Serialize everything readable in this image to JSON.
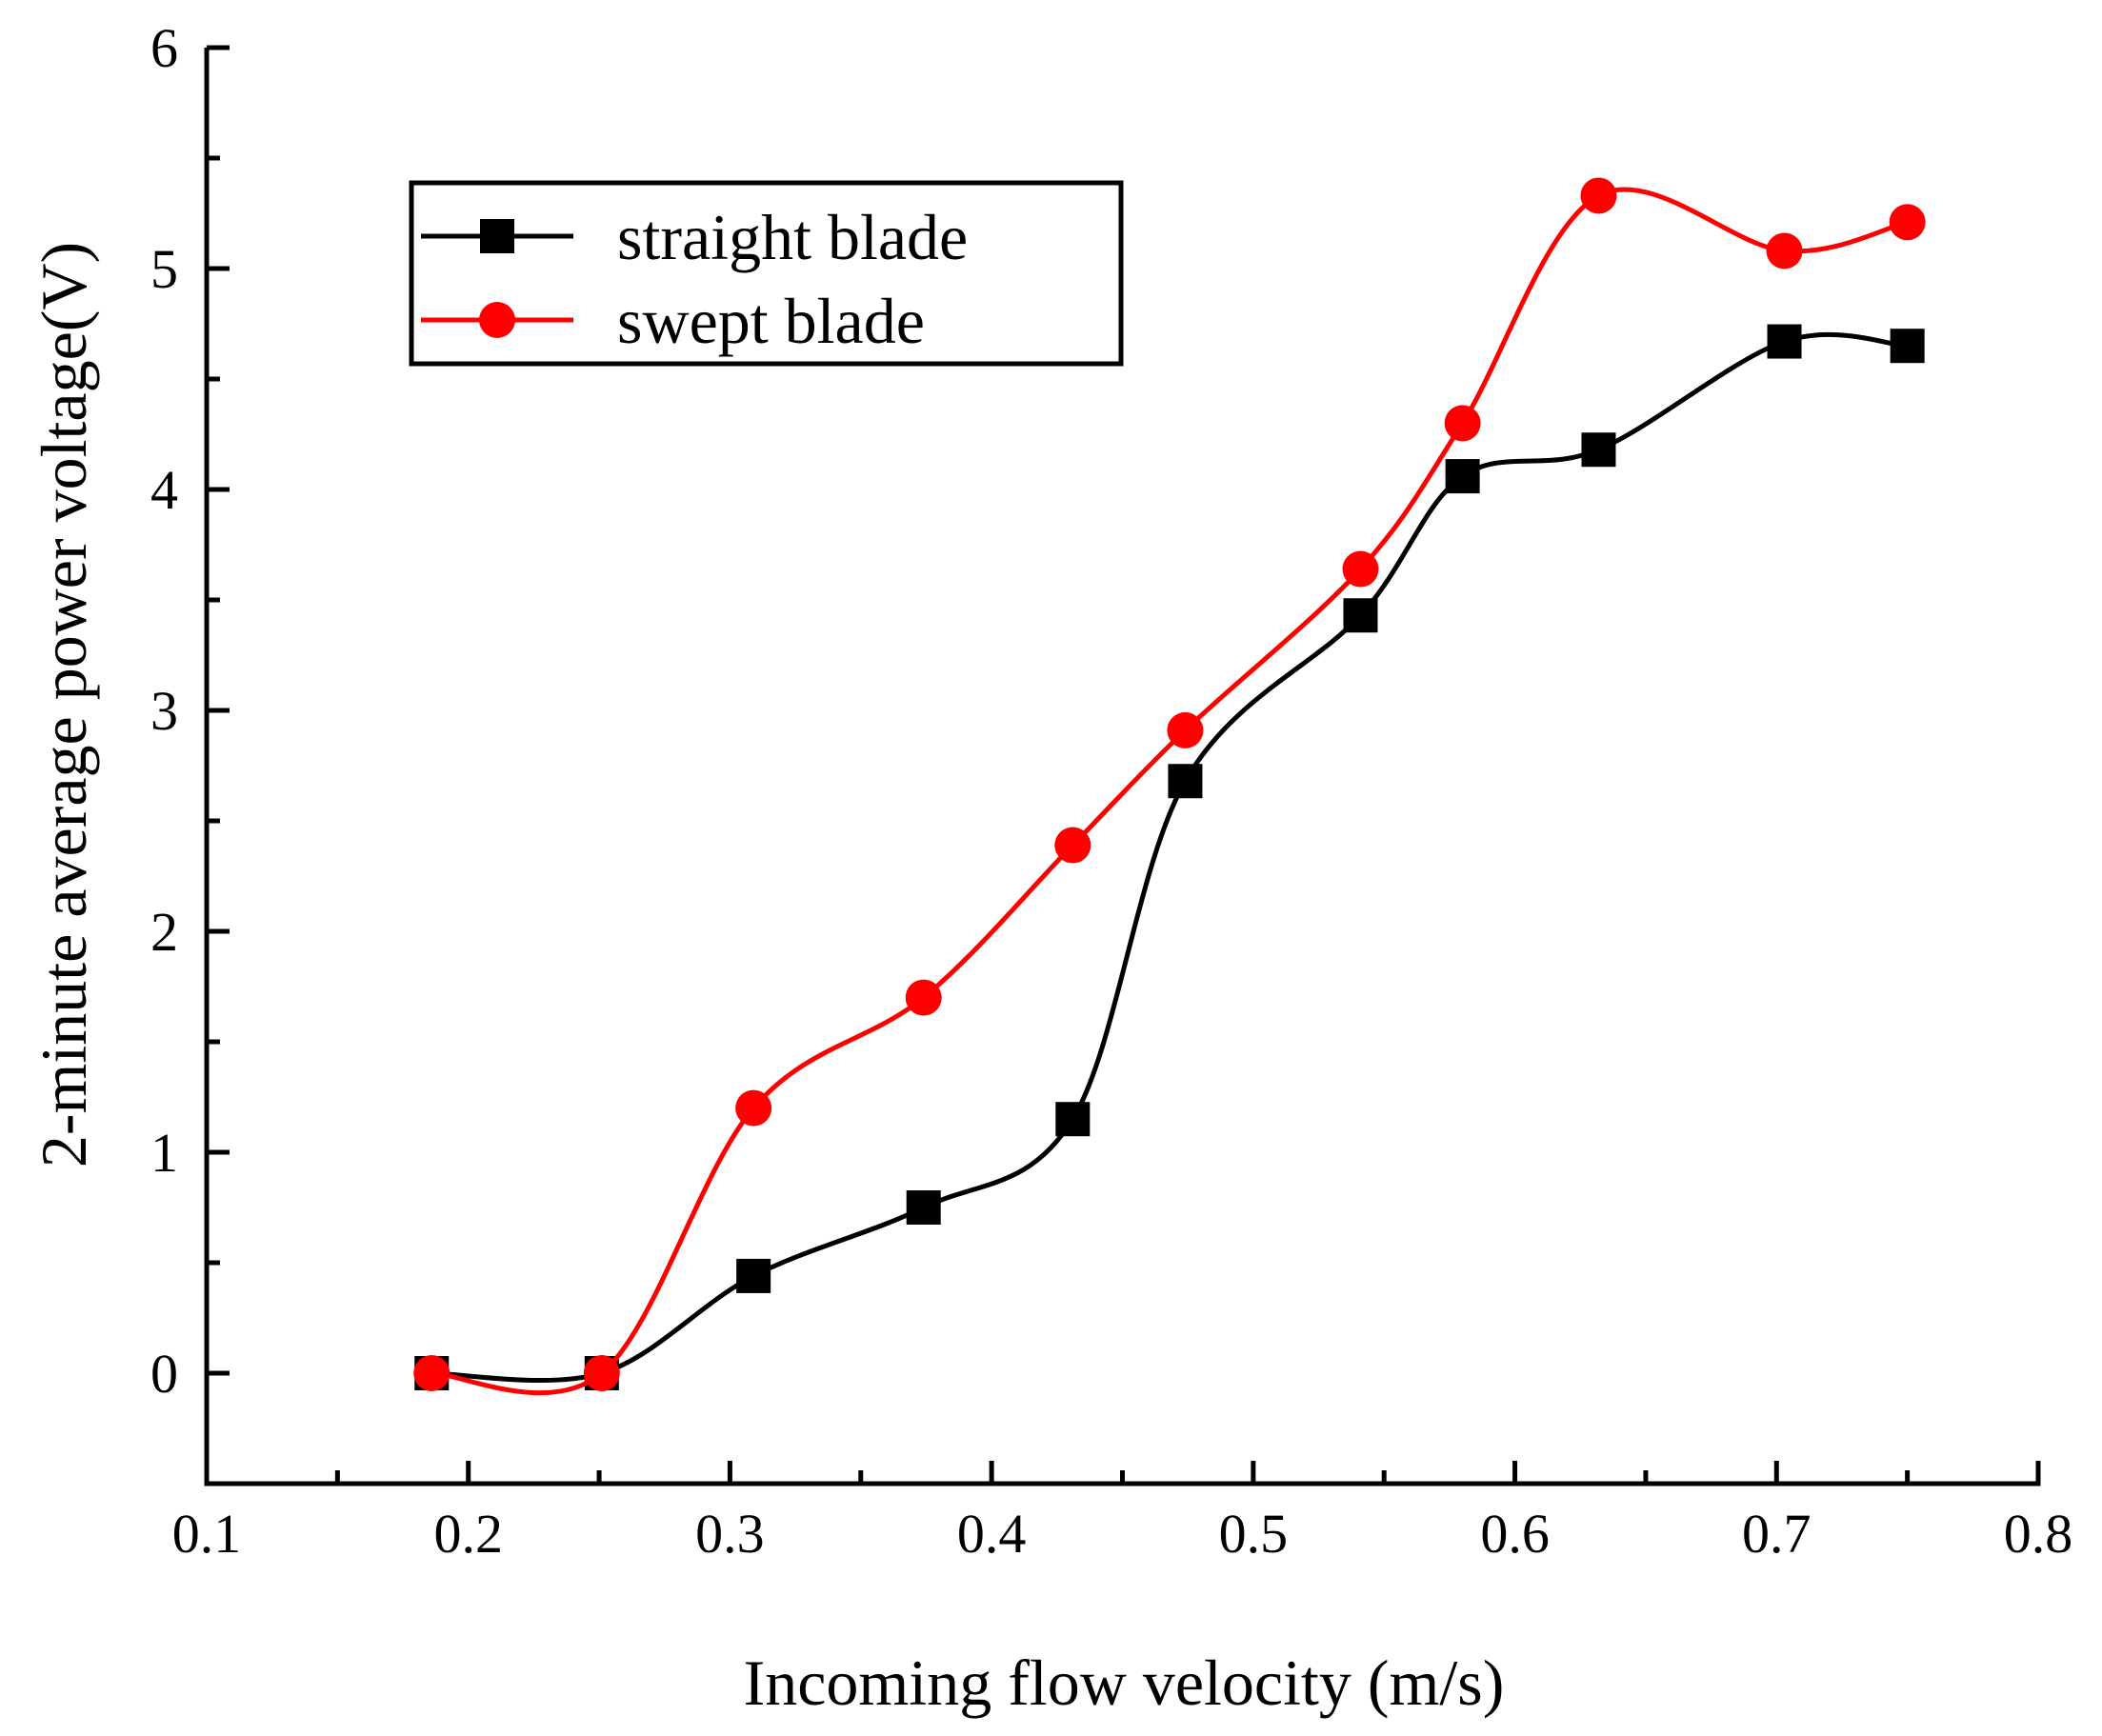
{
  "chart_data": {
    "type": "line",
    "title": "",
    "xlabel": "Incoming flow velocity (m/s)",
    "ylabel": "2-minute average power voltage(V)",
    "xlim": [
      0.1,
      0.8
    ],
    "ylim": [
      -0.5,
      6
    ],
    "xticks": [
      0.1,
      0.2,
      0.3,
      0.4,
      0.5,
      0.6,
      0.7,
      0.8
    ],
    "xtick_labels": [
      "0.1",
      "0.2",
      "0.3",
      "0.4",
      "0.5",
      "0.6",
      "0.7",
      "0.8"
    ],
    "yticks": [
      0,
      1,
      2,
      3,
      4,
      5,
      6
    ],
    "ytick_labels": [
      "0",
      "1",
      "2",
      "3",
      "4",
      "5",
      "6"
    ],
    "grid": false,
    "legend_position": "top-left",
    "series": [
      {
        "name": "straight blade",
        "color": "#000000",
        "marker": "square",
        "x": [
          0.186,
          0.251,
          0.309,
          0.374,
          0.431,
          0.474,
          0.541,
          0.58,
          0.632,
          0.703,
          0.75
        ],
        "y": [
          0.0,
          0.0,
          0.44,
          0.75,
          1.15,
          2.68,
          3.43,
          4.06,
          4.18,
          4.67,
          4.65
        ]
      },
      {
        "name": "swept blade",
        "color": "#ff0000",
        "marker": "circle",
        "x": [
          0.186,
          0.251,
          0.309,
          0.374,
          0.431,
          0.474,
          0.541,
          0.58,
          0.632,
          0.703,
          0.75
        ],
        "y": [
          0.0,
          0.0,
          1.2,
          1.7,
          2.39,
          2.91,
          3.64,
          4.3,
          5.33,
          5.08,
          5.21
        ]
      }
    ]
  }
}
